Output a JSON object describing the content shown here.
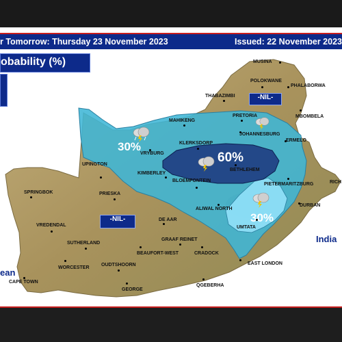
{
  "header": {
    "title": "r Tomorrow: Thursday 23 November 2023",
    "issued": "Issued: 22 November 2023"
  },
  "legend": {
    "title": "obability (%)"
  },
  "zones": [
    {
      "label": "30%",
      "probability": 30
    },
    {
      "label": "60%",
      "probability": 60
    },
    {
      "label": "30%",
      "probability": 30
    }
  ],
  "nil_labels": [
    "-NIL-",
    "-NIL-"
  ],
  "cities": [
    "MUSINA",
    "POLOKWANE",
    "PHALABORWA",
    "THABAZIMBI",
    "MBOMBELA",
    "MAHIKENG",
    "PRETORIA",
    "JOHANNESBURG",
    "ERMELO",
    "KLERKSDORP",
    "VRYBURG",
    "UPINGTON",
    "KIMBERLEY",
    "BETHLEHEM",
    "BLOEMFONTEIN",
    "PIETERMARITZBURG",
    "RICH",
    "SPRINGBOK",
    "PRIESKA",
    "DURBAN",
    "ALIWAL NORTH",
    "DE AAR",
    "VREDENDAL",
    "UMTATA",
    "GRAAF REINET",
    "SUTHERLAND",
    "BEAUFORT-WEST",
    "CRADOCK",
    "EAST LONDON",
    "WORCESTER",
    "OUDTSHOORN",
    "CAPE TOWN",
    "GEORGE",
    "QGEBERHA"
  ],
  "ocean_labels": [
    "India",
    "ean"
  ],
  "icons": [
    "thunderstorm-icon"
  ],
  "colors": {
    "header_bg": "#0d2a8a",
    "zone_30": "#3fb6d6",
    "zone_60": "#1f3f82",
    "zone_light": "#7fd6f2",
    "land": "#b9a36a"
  }
}
